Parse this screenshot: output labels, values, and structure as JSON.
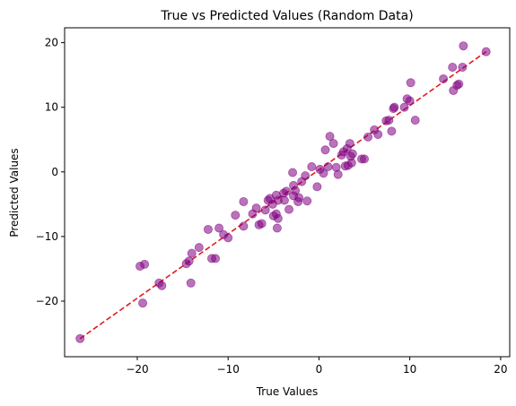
{
  "chart_data": {
    "type": "scatter",
    "title": "True vs Predicted Values (Random Data)",
    "xlabel": "True Values",
    "ylabel": "Predicted Values",
    "xlim": [
      -28,
      21
    ],
    "ylim": [
      -28.6,
      22.3
    ],
    "xticks": [
      -20,
      -10,
      0,
      10,
      20
    ],
    "yticks": [
      -20,
      -10,
      0,
      10,
      20
    ],
    "xtick_labels": [
      "−20",
      "−10",
      "0",
      "10",
      "20"
    ],
    "ytick_labels": [
      "−20",
      "−10",
      "0",
      "10",
      "20"
    ],
    "grid": false,
    "legend": "none",
    "point_color": "#800080",
    "point_alpha": 0.55,
    "reference_line": {
      "style": "dashed",
      "color": "#e31a1c",
      "from": [
        -26.3,
        -25.8
      ],
      "to": [
        18.4,
        18.6
      ]
    },
    "points": [
      [
        -26.3,
        -25.8
      ],
      [
        -19.7,
        -14.6
      ],
      [
        -19.2,
        -14.3
      ],
      [
        -19.4,
        -20.3
      ],
      [
        -17.6,
        -17.2
      ],
      [
        -17.3,
        -17.6
      ],
      [
        -14.6,
        -14.2
      ],
      [
        -14.3,
        -13.8
      ],
      [
        -14.1,
        -17.2
      ],
      [
        -14.0,
        -12.6
      ],
      [
        -13.2,
        -11.7
      ],
      [
        -12.2,
        -8.9
      ],
      [
        -11.8,
        -13.4
      ],
      [
        -11.4,
        -13.4
      ],
      [
        -11.0,
        -8.7
      ],
      [
        -10.5,
        -9.7
      ],
      [
        -10.0,
        -10.2
      ],
      [
        -9.2,
        -6.7
      ],
      [
        -8.3,
        -4.6
      ],
      [
        -8.3,
        -8.4
      ],
      [
        -7.3,
        -6.5
      ],
      [
        -6.9,
        -5.6
      ],
      [
        -6.6,
        -8.2
      ],
      [
        -6.3,
        -8.0
      ],
      [
        -5.9,
        -5.9
      ],
      [
        -5.6,
        -4.4
      ],
      [
        -5.4,
        -4.1
      ],
      [
        -5.1,
        -5.0
      ],
      [
        -5.0,
        -6.8
      ],
      [
        -4.7,
        -3.6
      ],
      [
        -4.7,
        -6.5
      ],
      [
        -4.5,
        -7.2
      ],
      [
        -4.5,
        -4.4
      ],
      [
        -4.6,
        -8.7
      ],
      [
        -3.9,
        -3.3
      ],
      [
        -3.6,
        -3.0
      ],
      [
        -3.8,
        -4.4
      ],
      [
        -3.3,
        -5.8
      ],
      [
        -2.8,
        -2.1
      ],
      [
        -2.8,
        -3.7
      ],
      [
        -2.9,
        -0.1
      ],
      [
        -2.6,
        -2.9
      ],
      [
        -2.3,
        -4.6
      ],
      [
        -2.2,
        -4.0
      ],
      [
        -1.9,
        -1.5
      ],
      [
        -1.5,
        -0.6
      ],
      [
        -1.3,
        -4.5
      ],
      [
        -0.8,
        0.8
      ],
      [
        -0.2,
        -2.3
      ],
      [
        0.1,
        0.4
      ],
      [
        0.5,
        -0.2
      ],
      [
        0.7,
        3.4
      ],
      [
        1.0,
        0.8
      ],
      [
        1.2,
        5.5
      ],
      [
        1.6,
        4.4
      ],
      [
        1.9,
        0.7
      ],
      [
        2.1,
        -0.4
      ],
      [
        2.5,
        2.6
      ],
      [
        2.7,
        3.1
      ],
      [
        2.9,
        0.9
      ],
      [
        3.1,
        3.6
      ],
      [
        3.2,
        1.0
      ],
      [
        3.4,
        4.4
      ],
      [
        3.5,
        2.4
      ],
      [
        3.6,
        1.4
      ],
      [
        3.7,
        2.8
      ],
      [
        4.7,
        2.0
      ],
      [
        5.0,
        2.0
      ],
      [
        5.4,
        5.4
      ],
      [
        6.1,
        6.5
      ],
      [
        6.5,
        5.8
      ],
      [
        7.4,
        7.9
      ],
      [
        7.7,
        8.0
      ],
      [
        8.0,
        6.3
      ],
      [
        8.2,
        9.8
      ],
      [
        8.3,
        10.0
      ],
      [
        9.4,
        10.0
      ],
      [
        9.7,
        11.3
      ],
      [
        10.0,
        11.0
      ],
      [
        10.1,
        13.8
      ],
      [
        10.6,
        8.0
      ],
      [
        13.7,
        14.4
      ],
      [
        14.7,
        16.2
      ],
      [
        14.8,
        12.6
      ],
      [
        15.2,
        13.4
      ],
      [
        15.4,
        13.6
      ],
      [
        15.8,
        16.2
      ],
      [
        15.9,
        19.5
      ],
      [
        18.4,
        18.6
      ]
    ]
  }
}
